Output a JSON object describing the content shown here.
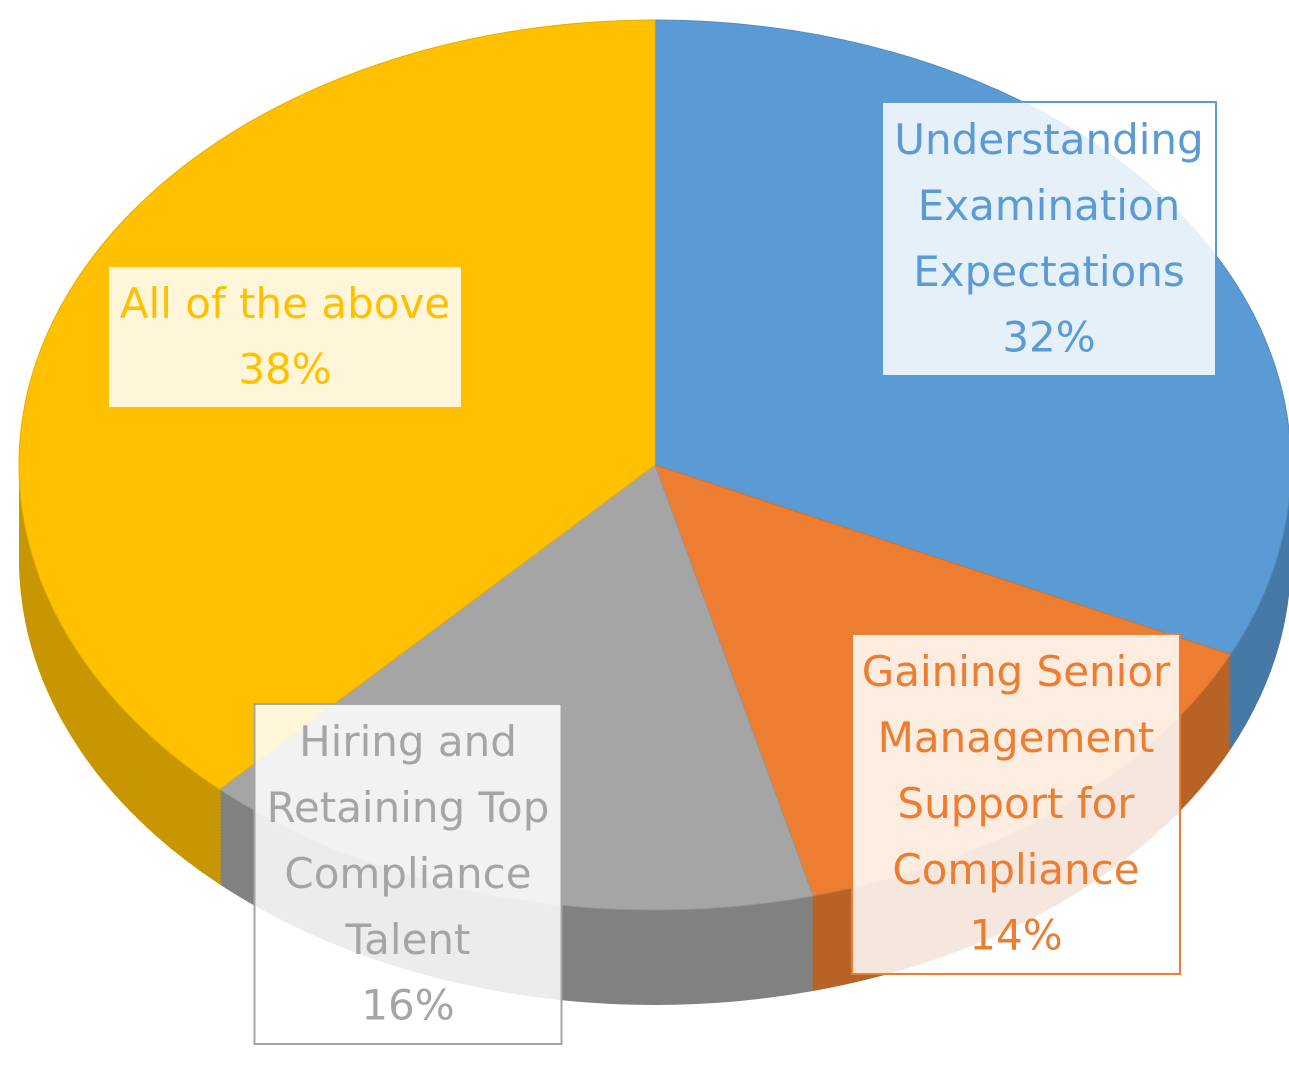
{
  "chart_data": {
    "type": "pie",
    "categories": [
      "Understanding Examination Expectations",
      "Gaining Senior Management Support for Compliance",
      "Hiring and Retaining Top Compliance Talent",
      "All of the above"
    ],
    "values": [
      32,
      14,
      16,
      38
    ],
    "value_labels": [
      "32%",
      "14%",
      "16%",
      "38%"
    ],
    "colors": [
      "#5b9bd5",
      "#ed7d31",
      "#a5a5a5",
      "#ffc000"
    ]
  }
}
